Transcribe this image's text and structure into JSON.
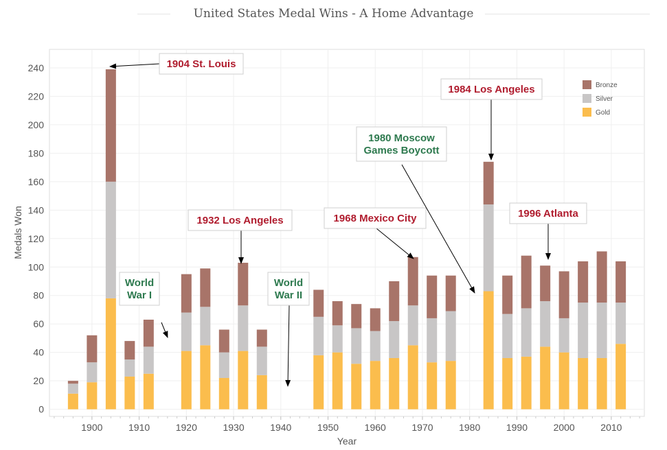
{
  "chart_data": {
    "type": "bar",
    "stacked": true,
    "title": "United States Medal Wins - A Home Advantage",
    "xlabel": "Year",
    "ylabel": "Medals Won",
    "xlim": [
      1891,
      2017
    ],
    "ylim": [
      -5,
      253
    ],
    "x_ticks": [
      1900,
      1910,
      1920,
      1930,
      1940,
      1950,
      1960,
      1970,
      1980,
      1990,
      2000,
      2010
    ],
    "y_ticks": [
      0,
      20,
      40,
      60,
      80,
      100,
      120,
      140,
      160,
      180,
      200,
      220,
      240
    ],
    "grid": true,
    "legend_position": "top-right",
    "legend_order": [
      "Bronze",
      "Silver",
      "Gold"
    ],
    "x": [
      1896,
      1900,
      1904,
      1908,
      1912,
      1920,
      1924,
      1928,
      1932,
      1936,
      1948,
      1952,
      1956,
      1960,
      1964,
      1968,
      1972,
      1976,
      1984,
      1988,
      1992,
      1996,
      2000,
      2004,
      2008,
      2012
    ],
    "series": [
      {
        "name": "Gold",
        "color": "#fbbd4d",
        "values": [
          11,
          19,
          78,
          23,
          25,
          41,
          45,
          22,
          41,
          24,
          38,
          40,
          32,
          34,
          36,
          45,
          33,
          34,
          83,
          36,
          37,
          44,
          40,
          36,
          36,
          46
        ]
      },
      {
        "name": "Silver",
        "color": "#c8c6c6",
        "values": [
          7,
          14,
          82,
          12,
          19,
          27,
          27,
          18,
          32,
          20,
          27,
          19,
          25,
          21,
          26,
          28,
          31,
          35,
          61,
          31,
          34,
          32,
          24,
          39,
          39,
          29
        ]
      },
      {
        "name": "Bronze",
        "color": "#a87469",
        "values": [
          2,
          19,
          79,
          13,
          19,
          27,
          27,
          16,
          30,
          12,
          19,
          17,
          17,
          16,
          28,
          34,
          30,
          25,
          30,
          27,
          37,
          25,
          33,
          29,
          36,
          29
        ]
      }
    ],
    "annotations": [
      {
        "label": "1904 St. Louis",
        "color": "#b01c2e"
      },
      {
        "label": "World War I",
        "color": "#2e7a4f"
      },
      {
        "label": "1932 Los Angeles",
        "color": "#b01c2e"
      },
      {
        "label": "World War II",
        "color": "#2e7a4f"
      },
      {
        "label": "1968 Mexico City",
        "color": "#b01c2e"
      },
      {
        "label": "1980 Moscow Games Boycott",
        "color": "#2e7a4f"
      },
      {
        "label": "1984 Los Angeles",
        "color": "#b01c2e"
      },
      {
        "label": "1996 Atlanta",
        "color": "#b01c2e"
      }
    ]
  }
}
